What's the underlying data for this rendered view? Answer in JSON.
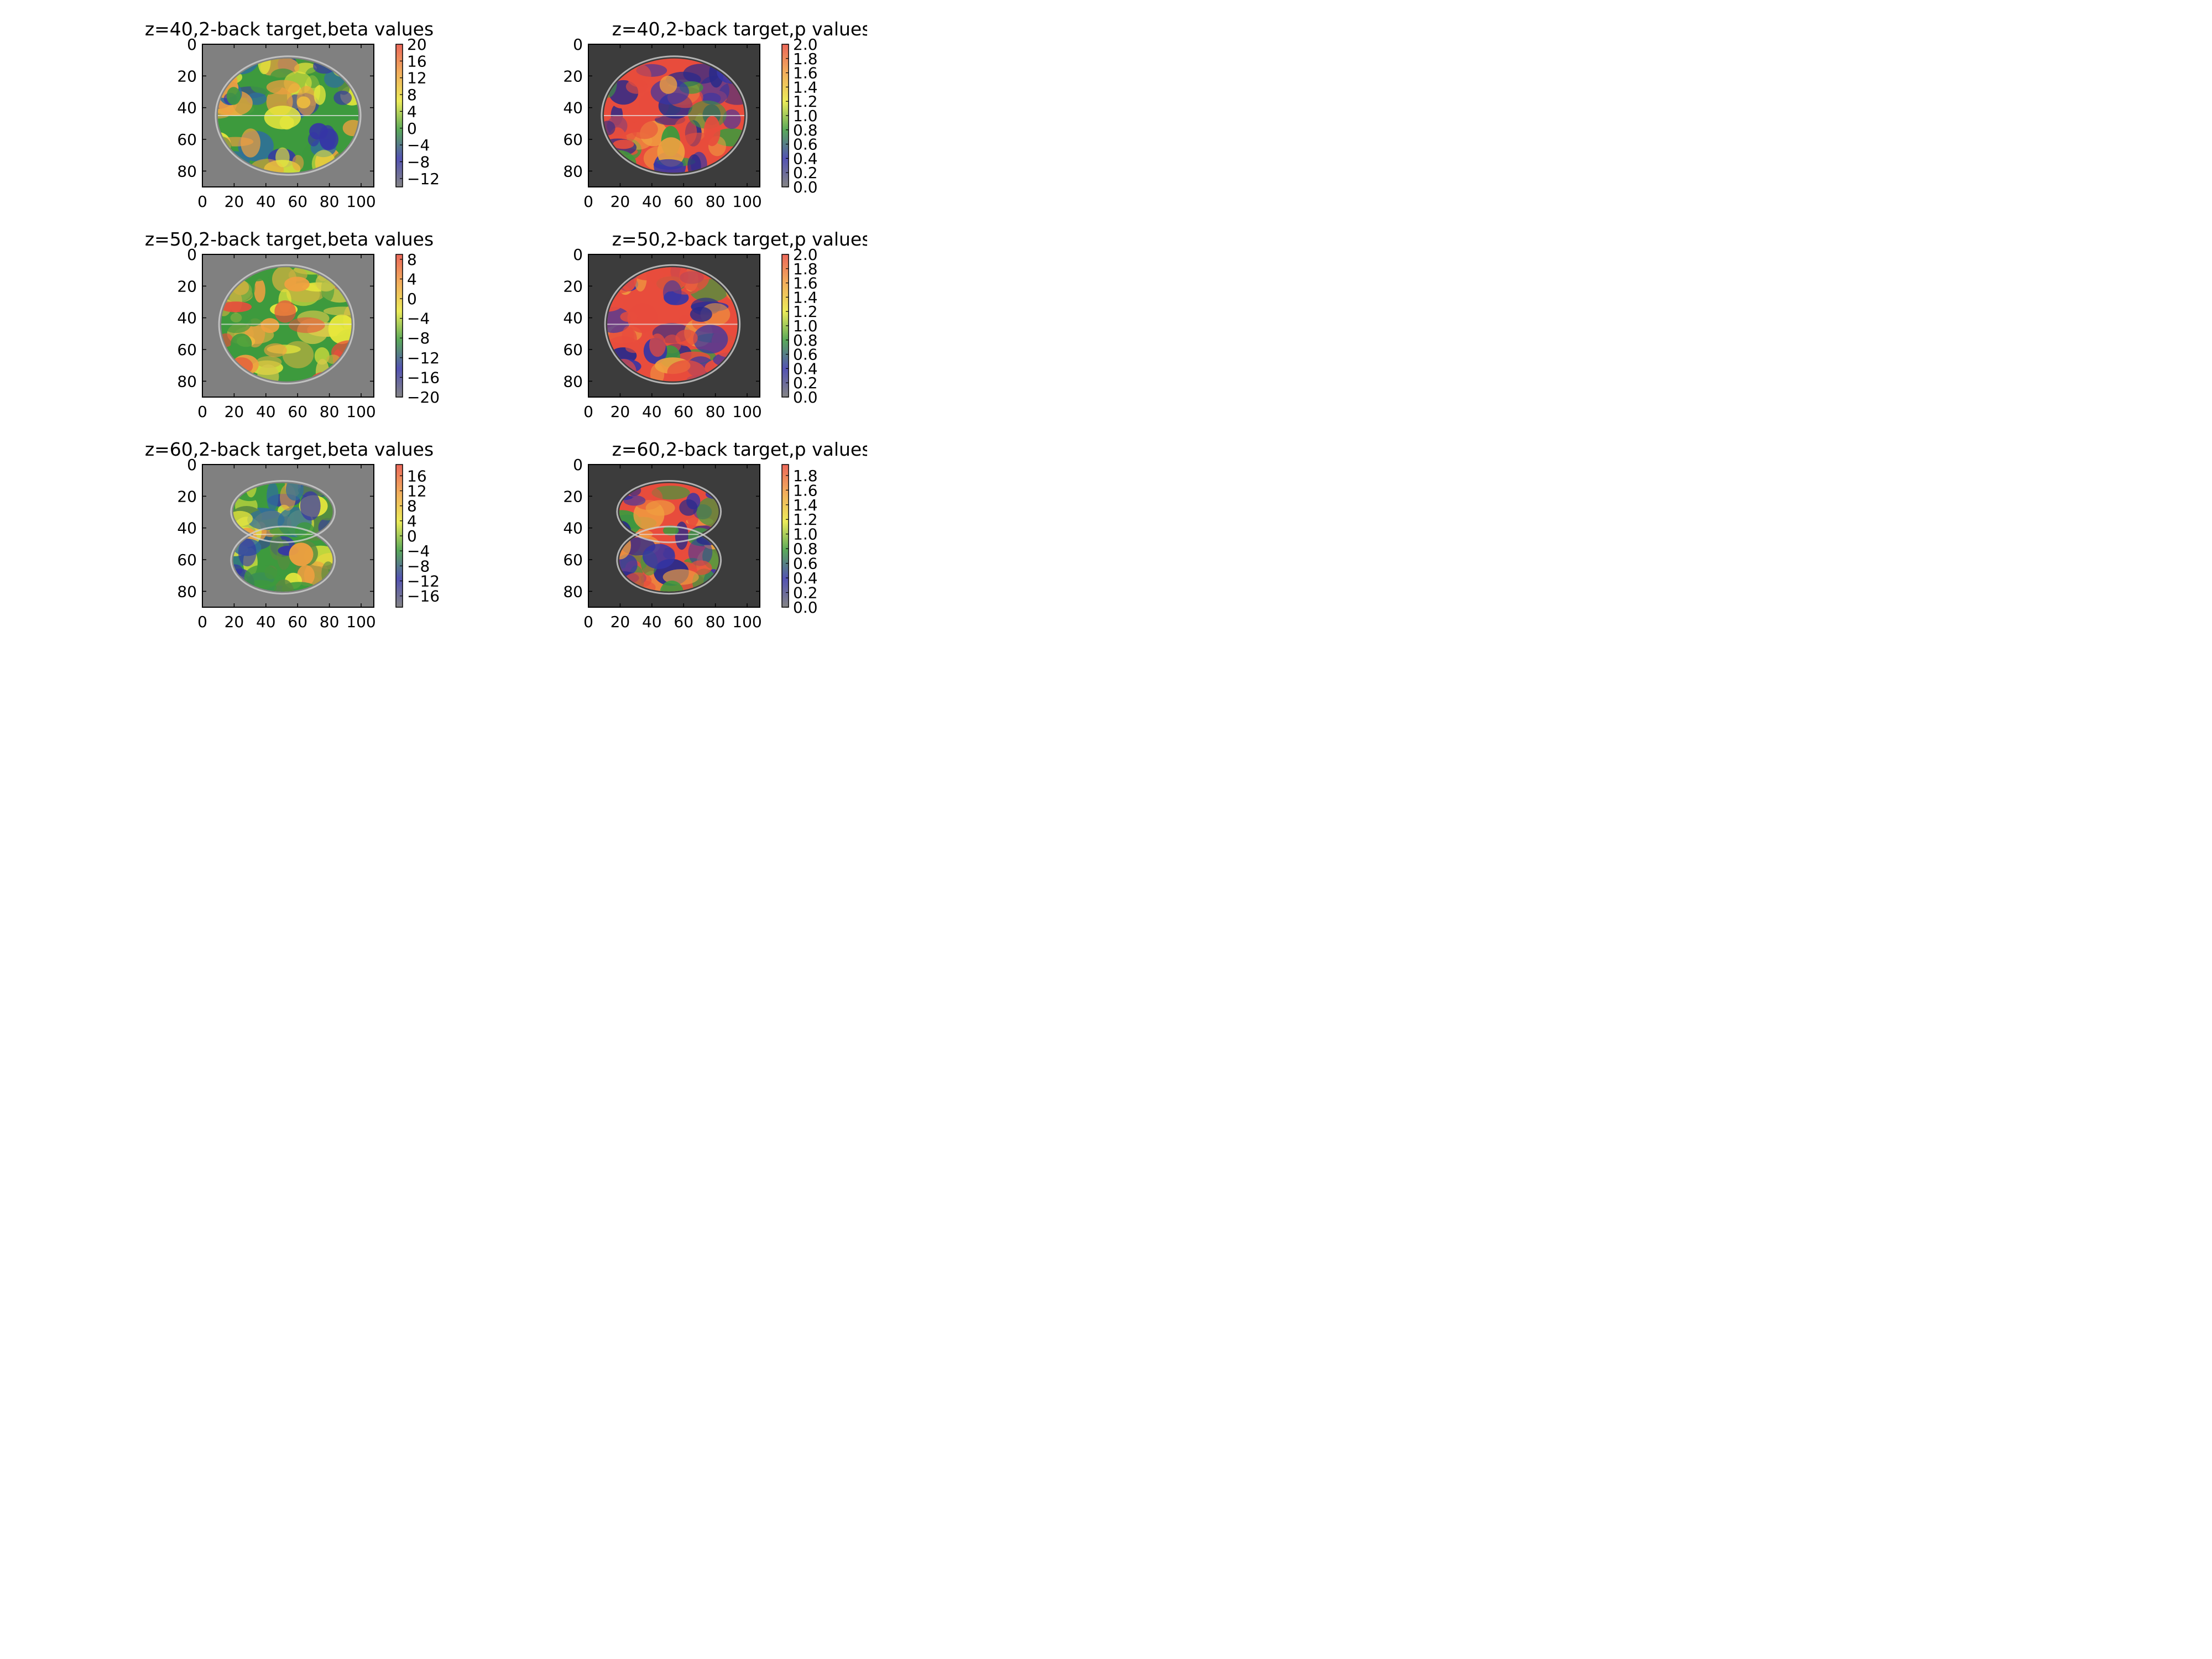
{
  "figure": {
    "panels": [
      {
        "title": "z=40,2-back target,beta values",
        "x_ticks": [
          "0",
          "20",
          "40",
          "60",
          "80",
          "100"
        ],
        "y_ticks": [
          "0",
          "20",
          "40",
          "60",
          "80"
        ],
        "colorbar_ticks": [
          "20",
          "16",
          "12",
          "8",
          "4",
          "0",
          "−4",
          "−8",
          "−12"
        ],
        "colorbar_range": [
          -14,
          20
        ],
        "background": "#808080"
      },
      {
        "title": "z=40,2-back target,p values",
        "x_ticks": [
          "0",
          "20",
          "40",
          "60",
          "80",
          "100"
        ],
        "y_ticks": [
          "0",
          "20",
          "40",
          "60",
          "80"
        ],
        "colorbar_ticks": [
          "2.0",
          "1.8",
          "1.6",
          "1.4",
          "1.2",
          "1.0",
          "0.8",
          "0.6",
          "0.4",
          "0.2",
          "0.0"
        ],
        "colorbar_range": [
          0,
          2.0
        ],
        "background": "#3c3c3c"
      },
      {
        "title": "z=50,2-back target,beta values",
        "x_ticks": [
          "0",
          "20",
          "40",
          "60",
          "80",
          "100"
        ],
        "y_ticks": [
          "0",
          "20",
          "40",
          "60",
          "80"
        ],
        "colorbar_ticks": [
          "8",
          "4",
          "0",
          "−4",
          "−8",
          "−12",
          "−16",
          "−20"
        ],
        "colorbar_range": [
          -20,
          9
        ],
        "background": "#808080"
      },
      {
        "title": "z=50,2-back target,p values",
        "x_ticks": [
          "0",
          "20",
          "40",
          "60",
          "80",
          "100"
        ],
        "y_ticks": [
          "0",
          "20",
          "40",
          "60",
          "80"
        ],
        "colorbar_ticks": [
          "2.0",
          "1.8",
          "1.6",
          "1.4",
          "1.2",
          "1.0",
          "0.8",
          "0.6",
          "0.4",
          "0.2",
          "0.0"
        ],
        "colorbar_range": [
          0,
          2.0
        ],
        "background": "#3c3c3c"
      },
      {
        "title": "z=60,2-back target,beta values",
        "x_ticks": [
          "0",
          "20",
          "40",
          "60",
          "80",
          "100"
        ],
        "y_ticks": [
          "0",
          "20",
          "40",
          "60",
          "80"
        ],
        "colorbar_ticks": [
          "16",
          "12",
          "8",
          "4",
          "0",
          "−4",
          "−8",
          "−12",
          "−16"
        ],
        "colorbar_range": [
          -19,
          19
        ],
        "background": "#808080"
      },
      {
        "title": "z=60,2-back target,p values",
        "x_ticks": [
          "0",
          "20",
          "40",
          "60",
          "80",
          "100"
        ],
        "y_ticks": [
          "0",
          "20",
          "40",
          "60",
          "80"
        ],
        "colorbar_ticks": [
          "1.8",
          "1.6",
          "1.4",
          "1.2",
          "1.0",
          "0.8",
          "0.6",
          "0.4",
          "0.2",
          "0.0"
        ],
        "colorbar_range": [
          0,
          1.95
        ],
        "background": "#3c3c3c"
      }
    ],
    "colormap": [
      "#6f6f6f",
      "#3535a6",
      "#3d9a3d",
      "#e8e83c",
      "#f0a040",
      "#e84c3c"
    ]
  }
}
